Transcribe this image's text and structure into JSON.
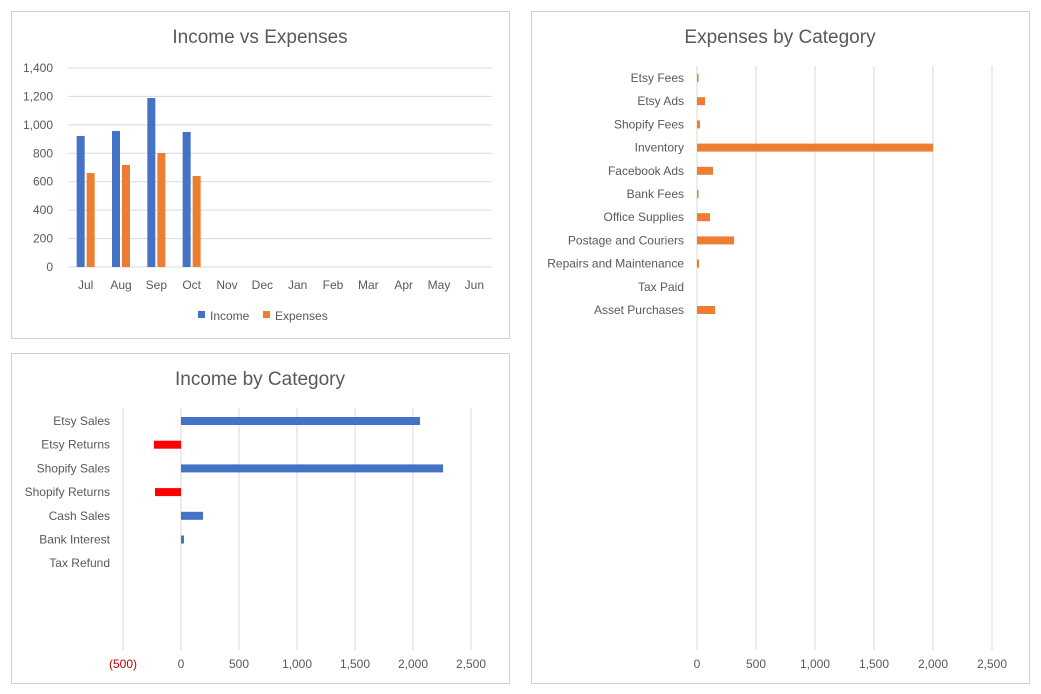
{
  "chart_data": [
    {
      "type": "bar",
      "title": "Income vs Expenses",
      "categories": [
        "Jul",
        "Aug",
        "Sep",
        "Oct",
        "Nov",
        "Dec",
        "Jan",
        "Feb",
        "Mar",
        "Apr",
        "May",
        "Jun"
      ],
      "series": [
        {
          "name": "Income",
          "color": "#4472C4",
          "values": [
            922,
            957,
            1189,
            950,
            null,
            null,
            null,
            null,
            null,
            null,
            null,
            null
          ]
        },
        {
          "name": "Expenses",
          "color": "#ED7D31",
          "values": [
            661,
            718,
            802,
            640,
            null,
            null,
            null,
            null,
            null,
            null,
            null,
            null
          ]
        }
      ],
      "ylim": [
        0,
        1400
      ],
      "yticks": [
        "0",
        "200",
        "400",
        "600",
        "800",
        "1,000",
        "1,200",
        "1,400"
      ],
      "grid": true,
      "legend": "bottom"
    },
    {
      "type": "bar",
      "orientation": "horizontal",
      "title": "Income by Category",
      "categories": [
        "Etsy Sales",
        "Etsy Returns",
        "Shopify Sales",
        "Shopify Returns",
        "Cash Sales",
        "Bank Interest",
        "Tax Refund"
      ],
      "values": [
        2060,
        -233,
        2259,
        -224,
        190,
        26,
        0
      ],
      "colors": {
        "positive": "#4472C4",
        "negative": "#FF0000"
      },
      "xlim": [
        -500,
        2500
      ],
      "xticks": [
        "(500)",
        "0",
        "500",
        "1,000",
        "1,500",
        "2,000",
        "2,500"
      ],
      "negative_tick_color": "#C00000",
      "grid": true
    },
    {
      "type": "bar",
      "orientation": "horizontal",
      "title": "Expenses by Category",
      "categories": [
        "Etsy Fees",
        "Etsy Ads",
        "Shopify Fees",
        "Inventory",
        "Facebook Ads",
        "Bank Fees",
        "Office Supplies",
        "Postage and Couriers",
        "Repairs and Maintenance",
        "Tax Paid",
        "Asset Purchases"
      ],
      "values": [
        8,
        68,
        25,
        2000,
        136,
        5,
        110,
        314,
        17,
        0,
        153
      ],
      "color": "#ED7D31",
      "xlim": [
        0,
        2500
      ],
      "xticks": [
        "0",
        "500",
        "1,000",
        "1,500",
        "2,000",
        "2,500"
      ],
      "grid": true
    }
  ]
}
